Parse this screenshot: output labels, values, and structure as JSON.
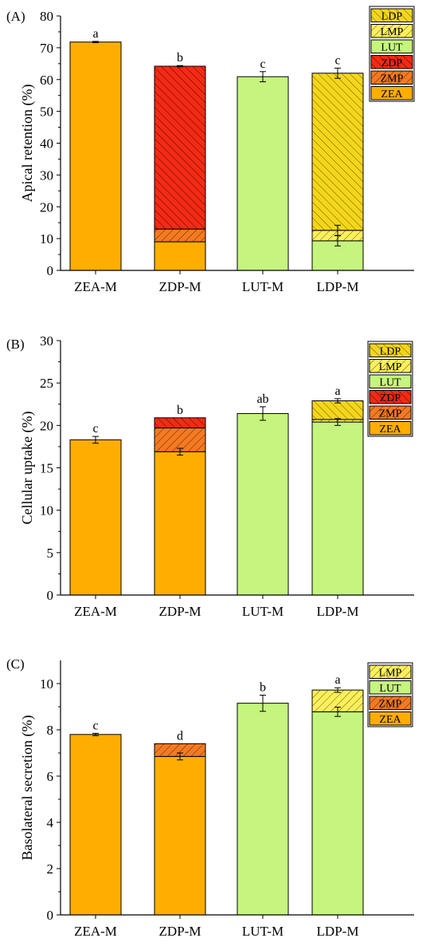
{
  "colors": {
    "ZEA": "#FFAE00",
    "ZMP": "#F47A22",
    "ZDP": "#F42A14",
    "LUT": "#C5F57E",
    "LMP": "#FBF05C",
    "LDP": "#F3D61C"
  },
  "chart_data": [
    {
      "type": "bar",
      "stacked": true,
      "panel_label": "(A)",
      "ylabel": "Apical retention (%)",
      "xlabel": "",
      "ylim": [
        0,
        80
      ],
      "yticks": [
        0,
        10,
        20,
        30,
        40,
        50,
        60,
        70,
        80
      ],
      "grid": false,
      "legend_position": "top-right",
      "legend": [
        "LDP",
        "LMP",
        "LUT",
        "ZDP",
        "ZMP",
        "ZEA"
      ],
      "categories": [
        "ZEA-M",
        "ZDP-M",
        "LUT-M",
        "LDP-M"
      ],
      "series": [
        {
          "name": "ZEA",
          "values": [
            71.8,
            9.0,
            0,
            0
          ]
        },
        {
          "name": "ZMP",
          "values": [
            0,
            4.0,
            0,
            0
          ]
        },
        {
          "name": "ZDP",
          "values": [
            0,
            51.2,
            0,
            0
          ]
        },
        {
          "name": "LUT",
          "values": [
            0,
            0,
            60.9,
            9.3
          ]
        },
        {
          "name": "LMP",
          "values": [
            0,
            0,
            0,
            3.3
          ]
        },
        {
          "name": "LDP",
          "values": [
            0,
            0,
            0,
            49.4
          ]
        }
      ],
      "error_bars": [
        {
          "category": "ZEA-M",
          "level": 71.8,
          "err": 0.2
        },
        {
          "category": "ZDP-M",
          "level": 64.2,
          "err": 0.2
        },
        {
          "category": "LUT-M",
          "level": 60.9,
          "err": 1.6
        },
        {
          "category": "LDP-M",
          "level": 62.0,
          "err": 1.6
        },
        {
          "category": "LDP-M",
          "level": 9.3,
          "err": 1.6
        },
        {
          "category": "LDP-M",
          "level": 12.6,
          "err": 1.6
        }
      ],
      "significance": [
        "a",
        "b",
        "c",
        "c"
      ]
    },
    {
      "type": "bar",
      "stacked": true,
      "panel_label": "(B)",
      "ylabel": "Cellular uptake (%)",
      "xlabel": "",
      "ylim": [
        0,
        30
      ],
      "yticks": [
        0,
        5,
        10,
        15,
        20,
        25,
        30
      ],
      "grid": false,
      "legend_position": "top-right",
      "legend": [
        "LDP",
        "LMP",
        "LUT",
        "ZDP",
        "ZMP",
        "ZEA"
      ],
      "categories": [
        "ZEA-M",
        "ZDP-M",
        "LUT-M",
        "LDP-M"
      ],
      "series": [
        {
          "name": "ZEA",
          "values": [
            18.3,
            16.9,
            0,
            0
          ]
        },
        {
          "name": "ZMP",
          "values": [
            0,
            2.8,
            0,
            0
          ]
        },
        {
          "name": "ZDP",
          "values": [
            0,
            1.2,
            0,
            0
          ]
        },
        {
          "name": "LUT",
          "values": [
            0,
            0,
            21.4,
            20.4
          ]
        },
        {
          "name": "LMP",
          "values": [
            0,
            0,
            0,
            0.3
          ]
        },
        {
          "name": "LDP",
          "values": [
            0,
            0,
            0,
            2.2
          ]
        }
      ],
      "error_bars": [
        {
          "category": "ZEA-M",
          "level": 18.3,
          "err": 0.4
        },
        {
          "category": "ZDP-M",
          "level": 16.9,
          "err": 0.4
        },
        {
          "category": "LUT-M",
          "level": 21.4,
          "err": 0.8
        },
        {
          "category": "LDP-M",
          "level": 22.9,
          "err": 0.25
        },
        {
          "category": "LDP-M",
          "level": 20.4,
          "err": 0.4
        }
      ],
      "significance": [
        "c",
        "b",
        "ab",
        "a"
      ]
    },
    {
      "type": "bar",
      "stacked": true,
      "panel_label": "(C)",
      "ylabel": "Basolateral secretion (%)",
      "xlabel": "",
      "ylim": [
        0,
        11
      ],
      "yticks": [
        0,
        2,
        4,
        6,
        8,
        10
      ],
      "grid": false,
      "legend_position": "top-right",
      "legend": [
        "LMP",
        "LUT",
        "ZMP",
        "ZEA"
      ],
      "categories": [
        "ZEA-M",
        "ZDP-M",
        "LUT-M",
        "LDP-M"
      ],
      "series": [
        {
          "name": "ZEA",
          "values": [
            7.8,
            6.85,
            0,
            0
          ]
        },
        {
          "name": "ZMP",
          "values": [
            0,
            0.55,
            0,
            0
          ]
        },
        {
          "name": "LUT",
          "values": [
            0,
            0,
            9.15,
            8.78
          ]
        },
        {
          "name": "LMP",
          "values": [
            0,
            0,
            0,
            0.94
          ]
        }
      ],
      "error_bars": [
        {
          "category": "ZEA-M",
          "level": 7.8,
          "err": 0.05
        },
        {
          "category": "ZDP-M",
          "level": 6.85,
          "err": 0.15
        },
        {
          "category": "LUT-M",
          "level": 9.15,
          "err": 0.35
        },
        {
          "category": "LDP-M",
          "level": 9.72,
          "err": 0.1
        },
        {
          "category": "LDP-M",
          "level": 8.78,
          "err": 0.2
        }
      ],
      "significance": [
        "c",
        "d",
        "b",
        "a"
      ]
    }
  ]
}
